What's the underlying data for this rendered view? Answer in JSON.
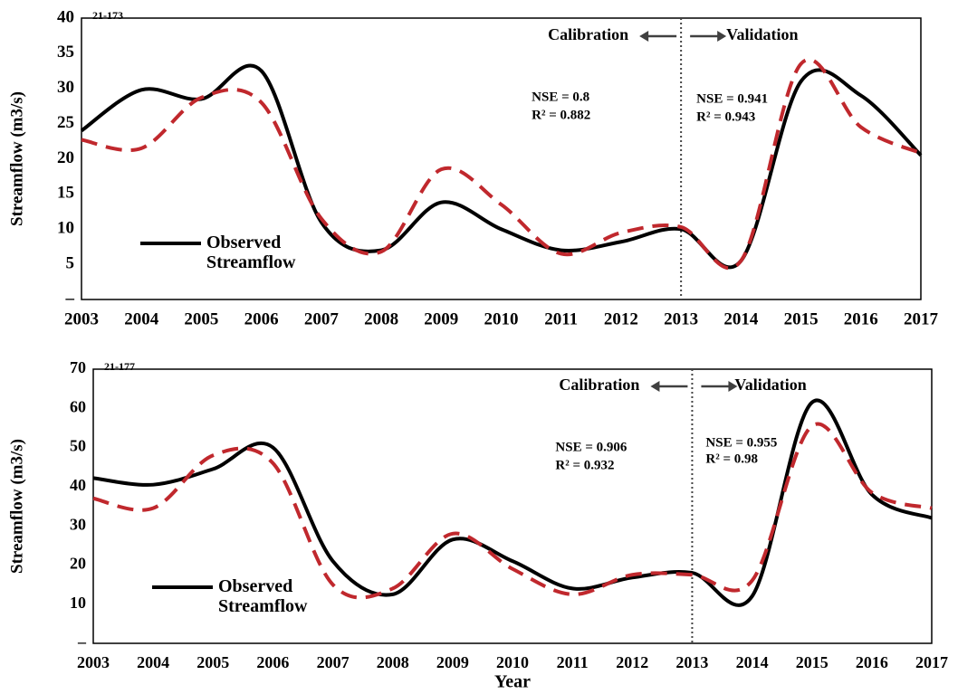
{
  "chart_data": [
    {
      "type": "line",
      "title": "21-173",
      "ylabel": "Streamflow (m3/s)",
      "x": [
        2003,
        2004,
        2005,
        2006,
        2007,
        2008,
        2009,
        2010,
        2011,
        2012,
        2013,
        2014,
        2015,
        2016,
        2017
      ],
      "series": [
        {
          "name": "Observed Streamflow",
          "color": "#000000",
          "dash": false,
          "values": [
            24,
            29.8,
            28.5,
            32.5,
            11,
            7,
            13.8,
            10,
            7,
            8.2,
            10,
            5.5,
            31,
            29,
            20.5
          ]
        },
        {
          "color": "#c0282d",
          "dash": true,
          "values": [
            22.7,
            21.5,
            28.7,
            28,
            11.5,
            6.8,
            18.5,
            13.5,
            6.5,
            9.5,
            10.3,
            5.5,
            33.5,
            24.5,
            20.8
          ]
        }
      ],
      "xlim": [
        2003,
        2017
      ],
      "xticks": [
        2003,
        2004,
        2005,
        2006,
        2007,
        2008,
        2009,
        2010,
        2011,
        2012,
        2013,
        2014,
        2015,
        2016,
        2017
      ],
      "ylim": [
        0,
        40
      ],
      "yticks": [
        {
          "value": 0,
          "label": "–"
        },
        5,
        10,
        15,
        20,
        25,
        30,
        35,
        40
      ],
      "divider_x": 2013,
      "annotations": [
        "Calibration",
        "Validation",
        "NSE = 0.8",
        "R² = 0.882",
        "NSE = 0.941",
        "R² = 0.943"
      ]
    },
    {
      "type": "line",
      "title": "21-177",
      "ylabel": "Streamflow (m3/s)",
      "xlabel": "Year",
      "x": [
        2003,
        2004,
        2005,
        2006,
        2007,
        2008,
        2009,
        2010,
        2011,
        2012,
        2013,
        2014,
        2015,
        2016,
        2017
      ],
      "series": [
        {
          "name": "Observed Streamflow",
          "color": "#000000",
          "dash": false,
          "values": [
            42.2,
            40.5,
            44.5,
            50,
            21,
            12.5,
            26.5,
            21,
            14,
            16.8,
            18,
            12,
            61.5,
            38,
            32
          ]
        },
        {
          "color": "#c0282d",
          "dash": true,
          "values": [
            37,
            34.5,
            48,
            46,
            15,
            14,
            28,
            19,
            12.5,
            17.5,
            17.5,
            16,
            55.5,
            38.5,
            34.5
          ]
        }
      ],
      "xlim": [
        2003,
        2017
      ],
      "xticks": [
        2003,
        2004,
        2005,
        2006,
        2007,
        2008,
        2009,
        2010,
        2011,
        2012,
        2013,
        2014,
        2015,
        2016,
        2017
      ],
      "ylim": [
        0,
        70
      ],
      "yticks": [
        {
          "value": 0,
          "label": "–"
        },
        10,
        20,
        30,
        40,
        50,
        60,
        70
      ],
      "divider_x": 2013,
      "annotations": [
        "Calibration",
        "Validation",
        "NSE = 0.906",
        "R² = 0.932",
        "NSE = 0.955",
        "R² = 0.98"
      ]
    }
  ]
}
